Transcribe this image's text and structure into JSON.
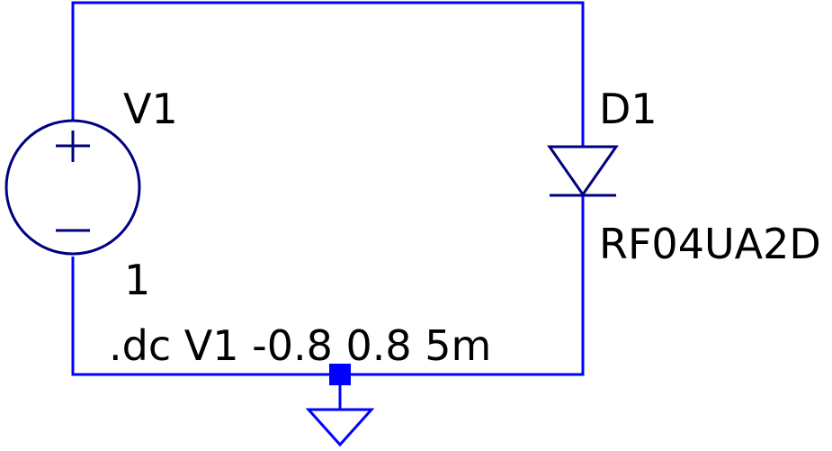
{
  "schematic": {
    "source": {
      "name": "V1",
      "value": "1"
    },
    "diode": {
      "name": "D1",
      "model": "RF04UA2D"
    },
    "directive": ".dc V1 -0.8 0.8 5m"
  },
  "colors": {
    "wire": "#0000ff",
    "component": "#000080",
    "text": "#000000",
    "background": "#ffffff"
  }
}
